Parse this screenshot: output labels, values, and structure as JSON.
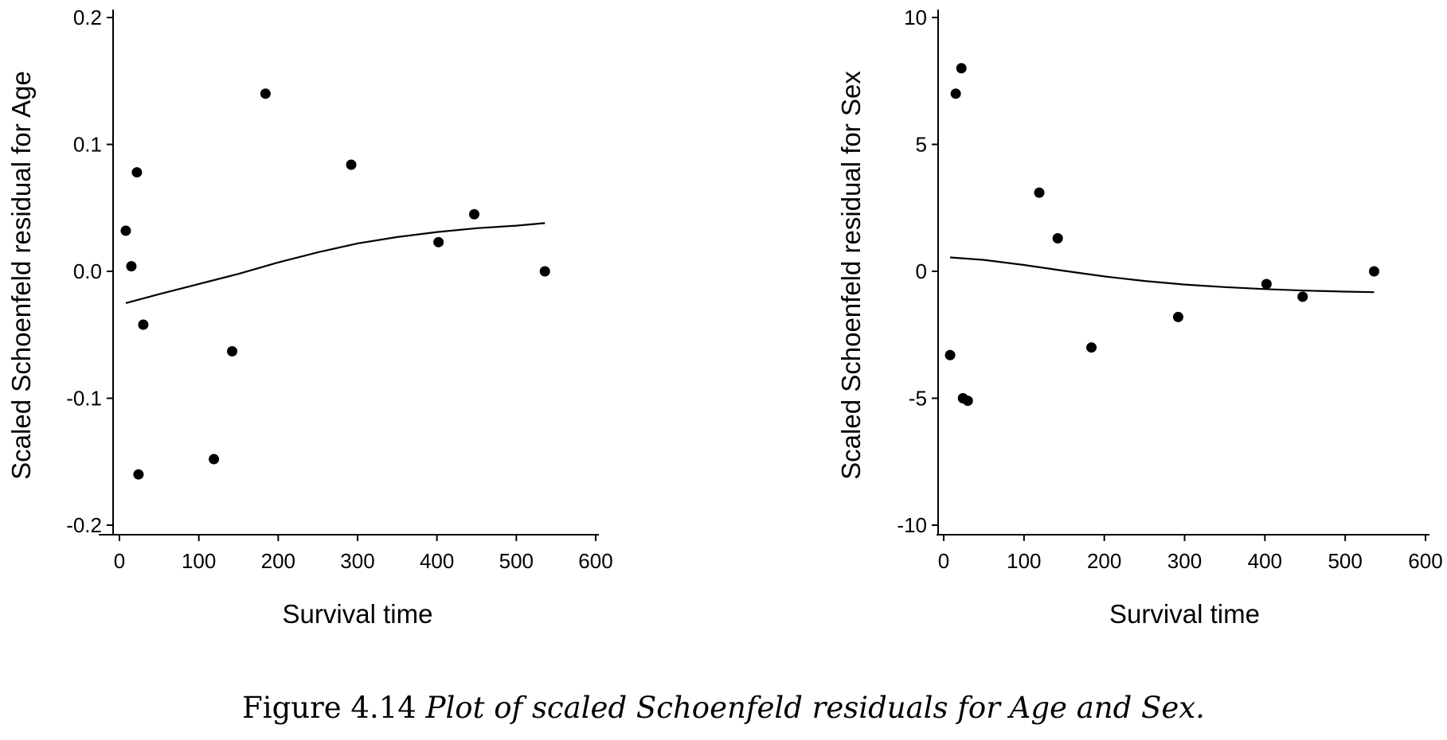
{
  "caption": {
    "label": "Figure 4.14",
    "text": "Plot of scaled Schoenfeld residuals for Age and Sex."
  },
  "chart_data": [
    {
      "type": "scatter",
      "title": "",
      "xlabel": "Survival time",
      "ylabel": "Scaled Schoenfeld residual for Age",
      "xlim": [
        0,
        600
      ],
      "ylim": [
        -0.2,
        0.2
      ],
      "xticks": [
        0,
        100,
        200,
        300,
        400,
        500,
        600
      ],
      "xtick_labels": [
        "0",
        "100",
        "200",
        "300",
        "400",
        "500",
        "600"
      ],
      "yticks": [
        -0.2,
        -0.1,
        0.0,
        0.1,
        0.2
      ],
      "ytick_labels": [
        "-0.2",
        "-0.1",
        "0.0",
        "0.1",
        "0.2"
      ],
      "grid": false,
      "points": [
        {
          "x": 8,
          "y": 0.032
        },
        {
          "x": 15,
          "y": 0.004
        },
        {
          "x": 22,
          "y": 0.078
        },
        {
          "x": 24,
          "y": -0.16
        },
        {
          "x": 30,
          "y": -0.042
        },
        {
          "x": 119,
          "y": -0.148
        },
        {
          "x": 142,
          "y": -0.063
        },
        {
          "x": 184,
          "y": 0.14
        },
        {
          "x": 292,
          "y": 0.084
        },
        {
          "x": 402,
          "y": 0.023
        },
        {
          "x": 447,
          "y": 0.045
        },
        {
          "x": 536,
          "y": 0.0
        }
      ],
      "smooth_line": [
        {
          "x": 8,
          "y": -0.025
        },
        {
          "x": 50,
          "y": -0.018
        },
        {
          "x": 100,
          "y": -0.01
        },
        {
          "x": 150,
          "y": -0.002
        },
        {
          "x": 200,
          "y": 0.007
        },
        {
          "x": 250,
          "y": 0.015
        },
        {
          "x": 300,
          "y": 0.022
        },
        {
          "x": 350,
          "y": 0.027
        },
        {
          "x": 400,
          "y": 0.031
        },
        {
          "x": 450,
          "y": 0.034
        },
        {
          "x": 500,
          "y": 0.036
        },
        {
          "x": 536,
          "y": 0.038
        }
      ]
    },
    {
      "type": "scatter",
      "title": "",
      "xlabel": "Survival time",
      "ylabel": "Scaled Schoenfeld residual for Sex",
      "xlim": [
        0,
        600
      ],
      "ylim": [
        -10,
        10
      ],
      "xticks": [
        0,
        100,
        200,
        300,
        400,
        500,
        600
      ],
      "xtick_labels": [
        "0",
        "100",
        "200",
        "300",
        "400",
        "500",
        "600"
      ],
      "yticks": [
        -10,
        -5,
        0,
        5,
        10
      ],
      "ytick_labels": [
        "-10",
        "-5",
        "0",
        "5",
        "10"
      ],
      "grid": false,
      "points": [
        {
          "x": 8,
          "y": -3.3
        },
        {
          "x": 15,
          "y": 7.0
        },
        {
          "x": 22,
          "y": 8.0
        },
        {
          "x": 24,
          "y": -5.0
        },
        {
          "x": 30,
          "y": -5.1
        },
        {
          "x": 119,
          "y": 3.1
        },
        {
          "x": 142,
          "y": 1.3
        },
        {
          "x": 184,
          "y": -3.0
        },
        {
          "x": 292,
          "y": -1.8
        },
        {
          "x": 402,
          "y": -0.5
        },
        {
          "x": 447,
          "y": -1.0
        },
        {
          "x": 536,
          "y": 0.0
        }
      ],
      "smooth_line": [
        {
          "x": 8,
          "y": 0.55
        },
        {
          "x": 50,
          "y": 0.45
        },
        {
          "x": 100,
          "y": 0.25
        },
        {
          "x": 150,
          "y": 0.02
        },
        {
          "x": 200,
          "y": -0.2
        },
        {
          "x": 250,
          "y": -0.38
        },
        {
          "x": 300,
          "y": -0.52
        },
        {
          "x": 350,
          "y": -0.62
        },
        {
          "x": 400,
          "y": -0.7
        },
        {
          "x": 450,
          "y": -0.76
        },
        {
          "x": 500,
          "y": -0.8
        },
        {
          "x": 536,
          "y": -0.82
        }
      ]
    }
  ]
}
